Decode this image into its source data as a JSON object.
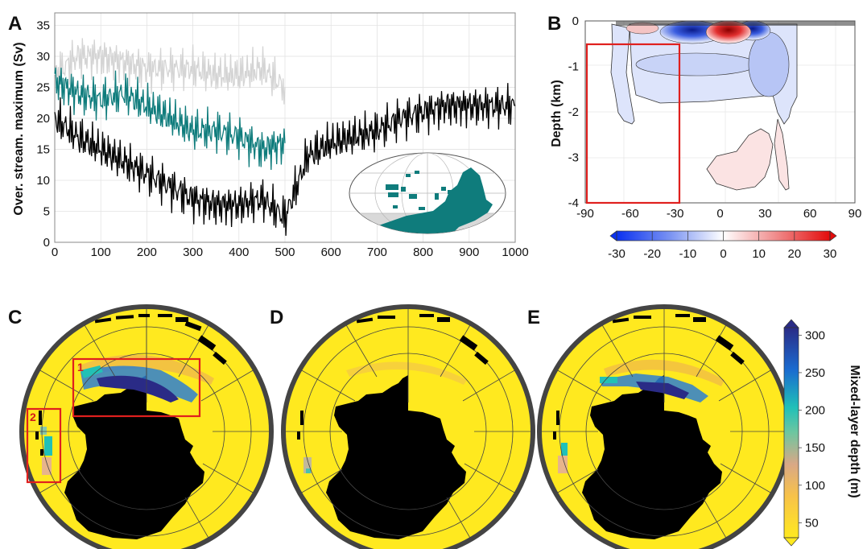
{
  "panel_labels": {
    "A": "A",
    "B": "B",
    "C": "C",
    "D": "D",
    "E": "E"
  },
  "colors": {
    "gray_series": "#d4d4d4",
    "teal_series": "#0f7c7c",
    "black_series": "#000000",
    "land": "#0f7c7c",
    "highlight_box": "#e0201e",
    "mld_low": "#ffe91f",
    "mld_high": "#2a2b86"
  },
  "chart_data": [
    {
      "panel": "A",
      "type": "line",
      "xlabel": "",
      "ylabel": "Over. stream. maximum (Sv)",
      "xlim": [
        0,
        1000
      ],
      "ylim": [
        0,
        37
      ],
      "x_ticks": [
        "0",
        "100",
        "200",
        "300",
        "400",
        "500",
        "600",
        "700",
        "800",
        "900",
        "1000"
      ],
      "y_ticks": [
        "0",
        "5",
        "10",
        "15",
        "20",
        "25",
        "30",
        "35"
      ],
      "grid": true,
      "series": [
        {
          "color": "gray",
          "x": [
            0,
            50,
            100,
            150,
            200,
            250,
            300,
            350,
            400,
            450,
            500
          ],
          "values": [
            27,
            30,
            30,
            29,
            28,
            28,
            28,
            27,
            27,
            28,
            25
          ]
        },
        {
          "color": "teal",
          "x": [
            0,
            50,
            100,
            150,
            200,
            250,
            300,
            350,
            400,
            450,
            500
          ],
          "values": [
            26,
            24,
            23,
            24,
            22,
            20,
            18,
            18,
            17,
            15,
            16
          ]
        },
        {
          "color": "black",
          "x": [
            0,
            50,
            100,
            150,
            200,
            250,
            300,
            350,
            400,
            450,
            500,
            550,
            600,
            650,
            700,
            750,
            800,
            850,
            900,
            950,
            1000
          ],
          "values": [
            20,
            17,
            15,
            13,
            11,
            9,
            7,
            6,
            6,
            7,
            4,
            14,
            16,
            17,
            18,
            20,
            21,
            22,
            22,
            22,
            22
          ]
        }
      ]
    },
    {
      "panel": "B",
      "type": "heatmap",
      "xlabel": "",
      "ylabel": "Depth (km)",
      "xlim": [
        -90,
        90
      ],
      "ylim": [
        -4,
        0
      ],
      "x_ticks": [
        "-90",
        "-60",
        "-30",
        "0",
        "30",
        "60",
        "90"
      ],
      "y_ticks": [
        "0",
        "-1",
        "-2",
        "-3",
        "-4"
      ],
      "colorbar_ticks": [
        "-30",
        "-20",
        "-10",
        "0",
        "10",
        "20",
        "30"
      ],
      "colorbar_range": [
        -30,
        30
      ],
      "colormap": "blue-white-red",
      "highlight_box": {
        "x": [
          -90,
          -30
        ],
        "y": [
          -4,
          -0.5
        ]
      }
    },
    {
      "panel": "C-E",
      "type": "heatmap",
      "colorbar_label": "Mixed-layer depth (m)",
      "colorbar_ticks": [
        "50",
        "100",
        "150",
        "200",
        "250",
        "300"
      ],
      "colorbar_range": [
        30,
        310
      ],
      "highlight_boxes": [
        "1",
        "2"
      ]
    }
  ]
}
